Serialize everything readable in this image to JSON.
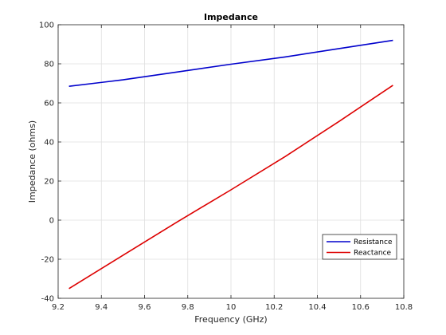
{
  "chart_data": {
    "type": "line",
    "title": "Impedance",
    "xlabel": "Frequency (GHz)",
    "ylabel": "Impedance (ohms)",
    "xlim": [
      9.2,
      10.8
    ],
    "ylim": [
      -40,
      100
    ],
    "xticks": [
      9.2,
      9.4,
      9.6,
      9.8,
      10,
      10.2,
      10.4,
      10.6,
      10.8
    ],
    "xtick_labels": [
      "9.2",
      "9.4",
      "9.6",
      "9.8",
      "10",
      "10.2",
      "10.4",
      "10.6",
      "10.8"
    ],
    "yticks": [
      -40,
      -20,
      0,
      20,
      40,
      60,
      80,
      100
    ],
    "ytick_labels": [
      "-40",
      "-20",
      "0",
      "20",
      "40",
      "60",
      "80",
      "100"
    ],
    "grid": true,
    "legend_position": "bottom-right",
    "series": [
      {
        "name": "Resistance",
        "color": "#0000cc",
        "x": [
          9.25,
          9.5,
          9.75,
          10.0,
          10.25,
          10.5,
          10.75
        ],
        "y": [
          68.5,
          71.8,
          75.8,
          79.8,
          83.5,
          87.8,
          92.0
        ]
      },
      {
        "name": "Reactance",
        "color": "#dd0000",
        "x": [
          9.25,
          9.5,
          9.75,
          10.0,
          10.25,
          10.5,
          10.75
        ],
        "y": [
          -35.0,
          -18.0,
          -1.0,
          15.5,
          32.5,
          50.5,
          69.0
        ]
      }
    ]
  }
}
